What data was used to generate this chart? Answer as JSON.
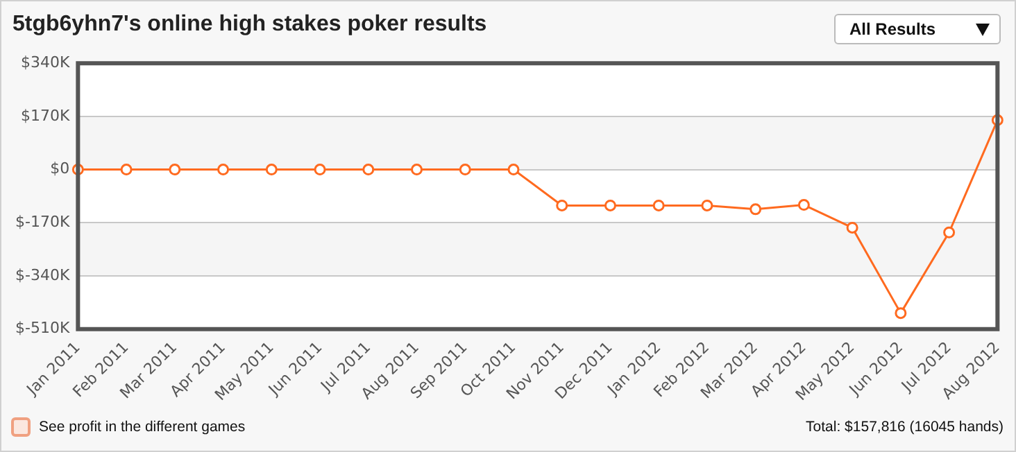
{
  "chart_data": {
    "type": "line",
    "title": "5tgb6yhn7's online high stakes poker results",
    "categories": [
      "Jan 2011",
      "Feb 2011",
      "Mar 2011",
      "Apr 2011",
      "May 2011",
      "Jun 2011",
      "Jul 2011",
      "Aug 2011",
      "Sep 2011",
      "Oct 2011",
      "Nov 2011",
      "Dec 2011",
      "Jan 2012",
      "Feb 2012",
      "Mar 2012",
      "Apr 2012",
      "May 2012",
      "Jun 2012",
      "Jul 2012",
      "Aug 2012"
    ],
    "series": [
      {
        "color": "#ff6a1f",
        "values": [
          0,
          0,
          0,
          0,
          0,
          0,
          0,
          0,
          0,
          0,
          -115000,
          -115000,
          -115000,
          -115000,
          -127000,
          -113000,
          -186000,
          -459000,
          -201000,
          158000
        ]
      }
    ],
    "ylim": [
      -510000,
      340000
    ],
    "yticks": [
      {
        "value": -510000,
        "label": "$-510K"
      },
      {
        "value": -340000,
        "label": "$-340K"
      },
      {
        "value": -170000,
        "label": "$-170K"
      },
      {
        "value": 0,
        "label": "$0"
      },
      {
        "value": 170000,
        "label": "$170K"
      },
      {
        "value": 340000,
        "label": "$340K"
      }
    ],
    "grid": "y",
    "legend": false,
    "marker": "circle",
    "line_style": "solid",
    "annotations": [
      "All Results",
      "See profit in the different games",
      "Total: $157,816 (16045 hands)"
    ]
  }
}
